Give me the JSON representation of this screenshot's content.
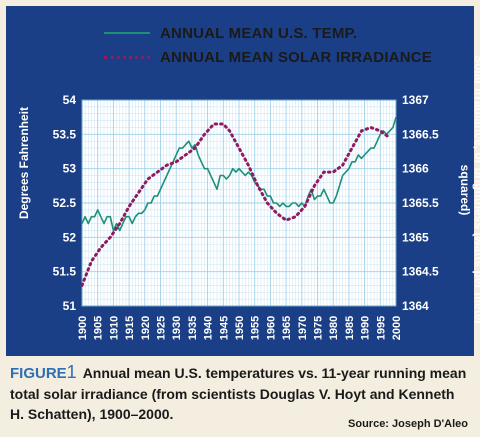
{
  "legend": {
    "temp_label": "ANNUAL MEAN U.S. TEMP.",
    "solar_label": "ANNUAL MEAN SOLAR IRRADIANCE"
  },
  "caption": {
    "figure_word": "FIGURE",
    "figure_number": "1",
    "text": "Annual mean U.S. temperatures vs. 11-year running mean total solar irradiance (from scientists Douglas V. Hoyt and Kenneth H. Schatten), 1900–2000.",
    "source": "Source: Joseph D'Aleo"
  },
  "colors": {
    "panel": "#1b3f86",
    "plot_bg": "#ffffff",
    "grid": "#9fd0ea",
    "temp_series": "#1e8f78",
    "solar_series": "#8d1d60",
    "figure_accent": "#2e6fb5"
  },
  "chart_data": {
    "type": "line",
    "x_ticks": [
      "1900",
      "1905",
      "1910",
      "1915",
      "1920",
      "1925",
      "1930",
      "1935",
      "1940",
      "1945",
      "1950",
      "1955",
      "1960",
      "1965",
      "1970",
      "1975",
      "1980",
      "1985",
      "1990",
      "1995",
      "2000"
    ],
    "xlim": [
      1900,
      2000
    ],
    "ylabel": "Degrees Fahrenheit",
    "ylim": [
      51,
      54
    ],
    "yticks": [
      "51",
      "51.5",
      "52",
      "52.5",
      "53",
      "53.5",
      "54"
    ],
    "y2label": "Solar irradiance, or brightness (watts per meter squared)",
    "y2lim": [
      1364,
      1367
    ],
    "y2ticks": [
      "1364",
      "1364.5",
      "1365",
      "1365.5",
      "1366",
      "1366.5",
      "1367"
    ],
    "grid": true,
    "legend_position": "top",
    "series": [
      {
        "name": "ANNUAL MEAN U.S. TEMP.",
        "axis": "left",
        "style": "solid",
        "x": [
          1900,
          1901,
          1902,
          1903,
          1904,
          1905,
          1906,
          1907,
          1908,
          1909,
          1910,
          1911,
          1912,
          1913,
          1914,
          1915,
          1916,
          1917,
          1918,
          1919,
          1920,
          1921,
          1922,
          1923,
          1924,
          1925,
          1926,
          1927,
          1928,
          1929,
          1930,
          1931,
          1932,
          1933,
          1934,
          1935,
          1936,
          1937,
          1938,
          1939,
          1940,
          1941,
          1942,
          1943,
          1944,
          1945,
          1946,
          1947,
          1948,
          1949,
          1950,
          1951,
          1952,
          1953,
          1954,
          1955,
          1956,
          1957,
          1958,
          1959,
          1960,
          1961,
          1962,
          1963,
          1964,
          1965,
          1966,
          1967,
          1968,
          1969,
          1970,
          1971,
          1972,
          1973,
          1974,
          1975,
          1976,
          1977,
          1978,
          1979,
          1980,
          1981,
          1982,
          1983,
          1984,
          1985,
          1986,
          1987,
          1988,
          1989,
          1990,
          1991,
          1992,
          1993,
          1994,
          1995,
          1996,
          1997,
          1998,
          1999,
          2000
        ],
        "values": [
          52.2,
          52.3,
          52.2,
          52.3,
          52.3,
          52.4,
          52.3,
          52.2,
          52.3,
          52.3,
          52.1,
          52.2,
          52.1,
          52.2,
          52.3,
          52.3,
          52.2,
          52.3,
          52.35,
          52.35,
          52.4,
          52.5,
          52.5,
          52.6,
          52.6,
          52.7,
          52.8,
          52.9,
          53.0,
          53.1,
          53.2,
          53.3,
          53.3,
          53.35,
          53.4,
          53.3,
          53.35,
          53.2,
          53.1,
          53.0,
          53.0,
          52.9,
          52.8,
          52.7,
          52.9,
          52.9,
          52.85,
          52.9,
          53.0,
          52.95,
          53.0,
          52.95,
          52.9,
          52.95,
          52.9,
          52.8,
          52.75,
          52.7,
          52.7,
          52.6,
          52.6,
          52.5,
          52.5,
          52.45,
          52.5,
          52.45,
          52.45,
          52.5,
          52.5,
          52.45,
          52.5,
          52.45,
          52.6,
          52.7,
          52.55,
          52.6,
          52.6,
          52.7,
          52.6,
          52.5,
          52.5,
          52.6,
          52.75,
          52.9,
          52.95,
          53.0,
          53.1,
          53.1,
          53.2,
          53.15,
          53.2,
          53.25,
          53.3,
          53.3,
          53.4,
          53.5,
          53.55,
          53.5,
          53.55,
          53.6,
          53.75
        ]
      },
      {
        "name": "ANNUAL MEAN SOLAR IRRADIANCE",
        "axis": "right",
        "style": "dotted",
        "x": [
          1900,
          1903,
          1906,
          1909,
          1912,
          1915,
          1918,
          1921,
          1924,
          1927,
          1930,
          1933,
          1936,
          1939,
          1942,
          1945,
          1947,
          1950,
          1953,
          1956,
          1959,
          1962,
          1965,
          1968,
          1971,
          1974,
          1977,
          1980,
          1983,
          1986,
          1989,
          1992,
          1995,
          1998
        ],
        "values": [
          1364.3,
          1364.65,
          1364.85,
          1365.0,
          1365.2,
          1365.45,
          1365.65,
          1365.85,
          1365.95,
          1366.05,
          1366.1,
          1366.2,
          1366.3,
          1366.5,
          1366.65,
          1366.65,
          1366.55,
          1366.3,
          1366.05,
          1365.75,
          1365.5,
          1365.35,
          1365.25,
          1365.3,
          1365.45,
          1365.75,
          1365.95,
          1365.95,
          1366.05,
          1366.3,
          1366.55,
          1366.6,
          1366.55,
          1366.45
        ]
      }
    ]
  }
}
